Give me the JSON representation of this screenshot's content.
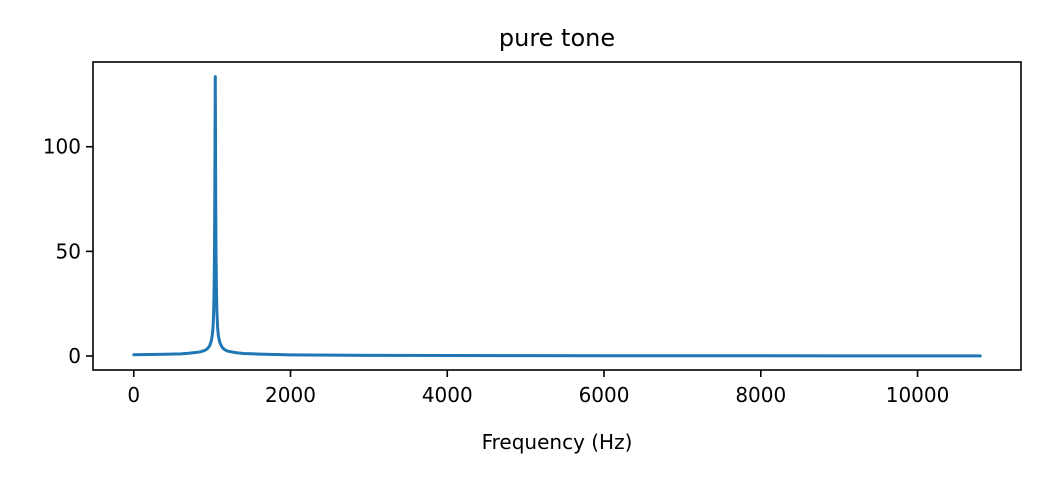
{
  "chart_data": {
    "type": "line",
    "title": "pure tone",
    "xlabel": "Frequency (Hz)",
    "ylabel": "",
    "xlim": [
      -520,
      11320
    ],
    "ylim": [
      -6.7,
      140.5
    ],
    "xticks": [
      0,
      2000,
      4000,
      6000,
      8000,
      10000
    ],
    "xtick_labels": [
      "0",
      "2000",
      "4000",
      "6000",
      "8000",
      "10000"
    ],
    "yticks": [
      0,
      50,
      100
    ],
    "ytick_labels": [
      "0",
      "50",
      "100"
    ],
    "grid": false,
    "legend": "none",
    "line_color": "#1f77b4",
    "series": [
      {
        "values_x": [
          0,
          200,
          400,
          600,
          700,
          800,
          850,
          900,
          930,
          950,
          970,
          990,
          1000,
          1010,
          1015,
          1020,
          1025,
          1030,
          1033,
          1036,
          1038,
          1040,
          1042,
          1044,
          1047,
          1050,
          1055,
          1060,
          1070,
          1080,
          1100,
          1130,
          1160,
          1200,
          1300,
          1400,
          1600,
          1800,
          2000,
          2500,
          3000,
          4000,
          5000,
          6000,
          7000,
          8000,
          9000,
          10000,
          10800
        ],
        "values_y": [
          0.6,
          0.7,
          0.8,
          1.0,
          1.3,
          1.7,
          2.0,
          2.6,
          3.2,
          3.9,
          5.0,
          7.3,
          9.5,
          13.0,
          16.5,
          22.0,
          32.0,
          50.0,
          70.0,
          95.0,
          115.0,
          133.5,
          115.0,
          92.0,
          65.0,
          48.0,
          32.0,
          22.0,
          13.5,
          9.5,
          6.2,
          4.0,
          3.0,
          2.3,
          1.6,
          1.2,
          0.9,
          0.7,
          0.55,
          0.4,
          0.3,
          0.22,
          0.17,
          0.13,
          0.1,
          0.08,
          0.06,
          0.05,
          0.04
        ]
      }
    ]
  }
}
